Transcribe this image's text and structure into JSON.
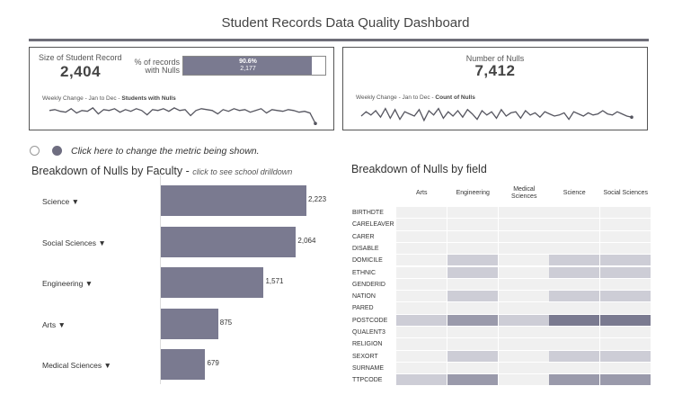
{
  "title": "Student Records Data Quality Dashboard",
  "card1": {
    "size_label": "Size of Student Record",
    "size_value": "2,404",
    "pct_label_1": "% of records",
    "pct_label_2": "with Nulls",
    "pct_value": "90.6%",
    "pct_count": "2,177",
    "pct_fraction": 0.906,
    "weekly_prefix": "Weekly Change - Jan to Dec - ",
    "weekly_metric": "Students with Nulls"
  },
  "card2": {
    "nulls_label": "Number of Nulls",
    "nulls_value": "7,412",
    "weekly_prefix": "Weekly Change - Jan to Dec - ",
    "weekly_metric": "Count of Nulls"
  },
  "metric_toggle_text": "Click here to change the metric being shown.",
  "faculty_chart": {
    "title": "Breakdown of Nulls by Faculty - ",
    "subtitle": "click to see school drilldown",
    "dropdown_glyph": "▼"
  },
  "field_chart": {
    "title": "Breakdown of Nulls by field"
  },
  "colors": {
    "bar": "#7a7a90",
    "heat_empty": "#f0f0f0",
    "heat_low": "#cdcdd6",
    "heat_mid": "#9a9aab",
    "heat_high": "#7a7a90"
  },
  "chart_data": [
    {
      "type": "bar",
      "orientation": "horizontal",
      "title": "Breakdown of Nulls by Faculty",
      "categories": [
        "Science",
        "Social Sciences",
        "Engineering",
        "Arts",
        "Medical Sciences"
      ],
      "values": [
        2223,
        2064,
        1571,
        875,
        679
      ],
      "value_labels": [
        "2,223",
        "2,064",
        "1,571",
        "875",
        "679"
      ],
      "xlim": [
        0,
        2300
      ]
    },
    {
      "type": "heatmap",
      "title": "Breakdown of Nulls by field",
      "columns": [
        "Arts",
        "Engineering",
        "Medical Sciences",
        "Science",
        "Social Sciences"
      ],
      "rows": [
        "BIRTHDTE",
        "CARELEAVER",
        "CARER",
        "DISABLE",
        "DOMICILE",
        "ETHNIC",
        "GENDERID",
        "NATION",
        "PARED",
        "POSTCODE",
        "QUALENT3",
        "RELIGION",
        "SEXORT",
        "SURNAME",
        "TTPCODE"
      ],
      "levels": [
        [
          0,
          0,
          0,
          0,
          0
        ],
        [
          0,
          0,
          0,
          0,
          0
        ],
        [
          0,
          0,
          0,
          0,
          0
        ],
        [
          0,
          0,
          0,
          0,
          0
        ],
        [
          0,
          1,
          0,
          1,
          1
        ],
        [
          0,
          1,
          0,
          1,
          1
        ],
        [
          0,
          0,
          0,
          0,
          0
        ],
        [
          0,
          1,
          0,
          1,
          1
        ],
        [
          0,
          0,
          0,
          0,
          0
        ],
        [
          1,
          2,
          1,
          3,
          3
        ],
        [
          0,
          0,
          0,
          0,
          0
        ],
        [
          0,
          0,
          0,
          0,
          0
        ],
        [
          0,
          1,
          0,
          1,
          1
        ],
        [
          0,
          0,
          0,
          0,
          0
        ],
        [
          1,
          2,
          0,
          2,
          2
        ]
      ]
    },
    {
      "type": "line",
      "title": "Weekly Change - Jan to Dec - Students with Nulls",
      "values": [
        44,
        45,
        43,
        42,
        46,
        41,
        44,
        43,
        47,
        40,
        45,
        44,
        46,
        42,
        45,
        43,
        46,
        44,
        39,
        45,
        44,
        46,
        43,
        47,
        44,
        45,
        38,
        44,
        46,
        45,
        44,
        40,
        45,
        43,
        46,
        44,
        45,
        42,
        44,
        46,
        41,
        45,
        44,
        43,
        45,
        44,
        42,
        43,
        41,
        29
      ],
      "ylim": [
        25,
        50
      ]
    },
    {
      "type": "line",
      "title": "Weekly Change - Jan to Dec - Count of Nulls",
      "values": [
        40,
        44,
        41,
        45,
        39,
        47,
        38,
        46,
        37,
        44,
        42,
        40,
        46,
        36,
        45,
        41,
        47,
        38,
        44,
        40,
        45,
        39,
        46,
        42,
        37,
        45,
        41,
        44,
        38,
        46,
        40,
        43,
        44,
        38,
        45,
        41,
        43,
        39,
        44,
        42,
        40,
        41,
        43,
        37,
        44,
        42,
        40,
        43,
        41,
        42,
        45,
        42,
        41,
        44,
        42,
        40,
        39
      ],
      "ylim": [
        30,
        50
      ]
    }
  ]
}
